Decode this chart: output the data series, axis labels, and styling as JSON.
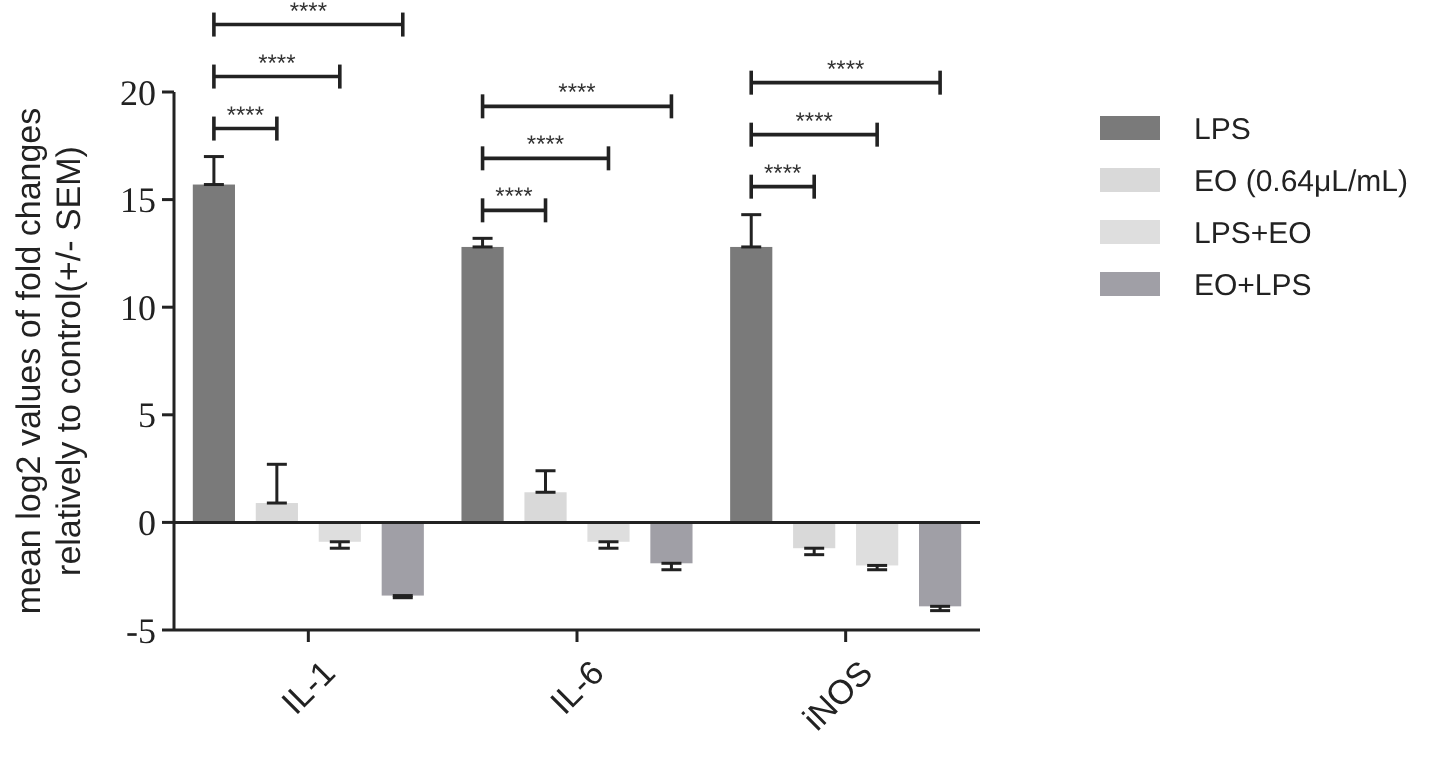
{
  "chart_data": {
    "type": "bar",
    "ylabel": "mean log2 values of fold changes\nrelatively to control(+/- SEM)",
    "categories": [
      "IL-1",
      "IL-6",
      "iNOS"
    ],
    "series": [
      {
        "name": "LPS",
        "color": "#7a7a7a",
        "values": [
          15.7,
          12.8,
          12.8
        ],
        "errors": [
          [
            15.7,
            17.0
          ],
          [
            12.8,
            13.2
          ],
          [
            12.8,
            14.3
          ]
        ]
      },
      {
        "name": "EO (0.64μL/mL)",
        "color": "#d9d9d9",
        "values": [
          0.9,
          1.4,
          -1.2
        ],
        "errors": [
          [
            0.9,
            2.7
          ],
          [
            1.4,
            2.4
          ],
          [
            -1.5,
            -1.2
          ]
        ]
      },
      {
        "name": "LPS+EO",
        "color": "#dedede",
        "values": [
          -0.9,
          -0.9,
          -2.0
        ],
        "errors": [
          [
            -1.2,
            -0.9
          ],
          [
            -1.2,
            -0.9
          ],
          [
            -2.2,
            -2.0
          ]
        ]
      },
      {
        "name": "EO+LPS",
        "color": "#a09fa6",
        "values": [
          -3.4,
          -1.9,
          -3.9
        ],
        "errors": [
          [
            -3.5,
            -3.4
          ],
          [
            -2.2,
            -1.9
          ],
          [
            -4.1,
            -3.9
          ]
        ]
      }
    ],
    "ylim": [
      -5,
      20
    ],
    "yticks": [
      -5,
      0,
      5,
      10,
      15,
      20
    ],
    "legend": "right",
    "annotations": [
      "****",
      "****",
      "****",
      "****",
      "****",
      "****",
      "****",
      "****",
      "****"
    ]
  }
}
